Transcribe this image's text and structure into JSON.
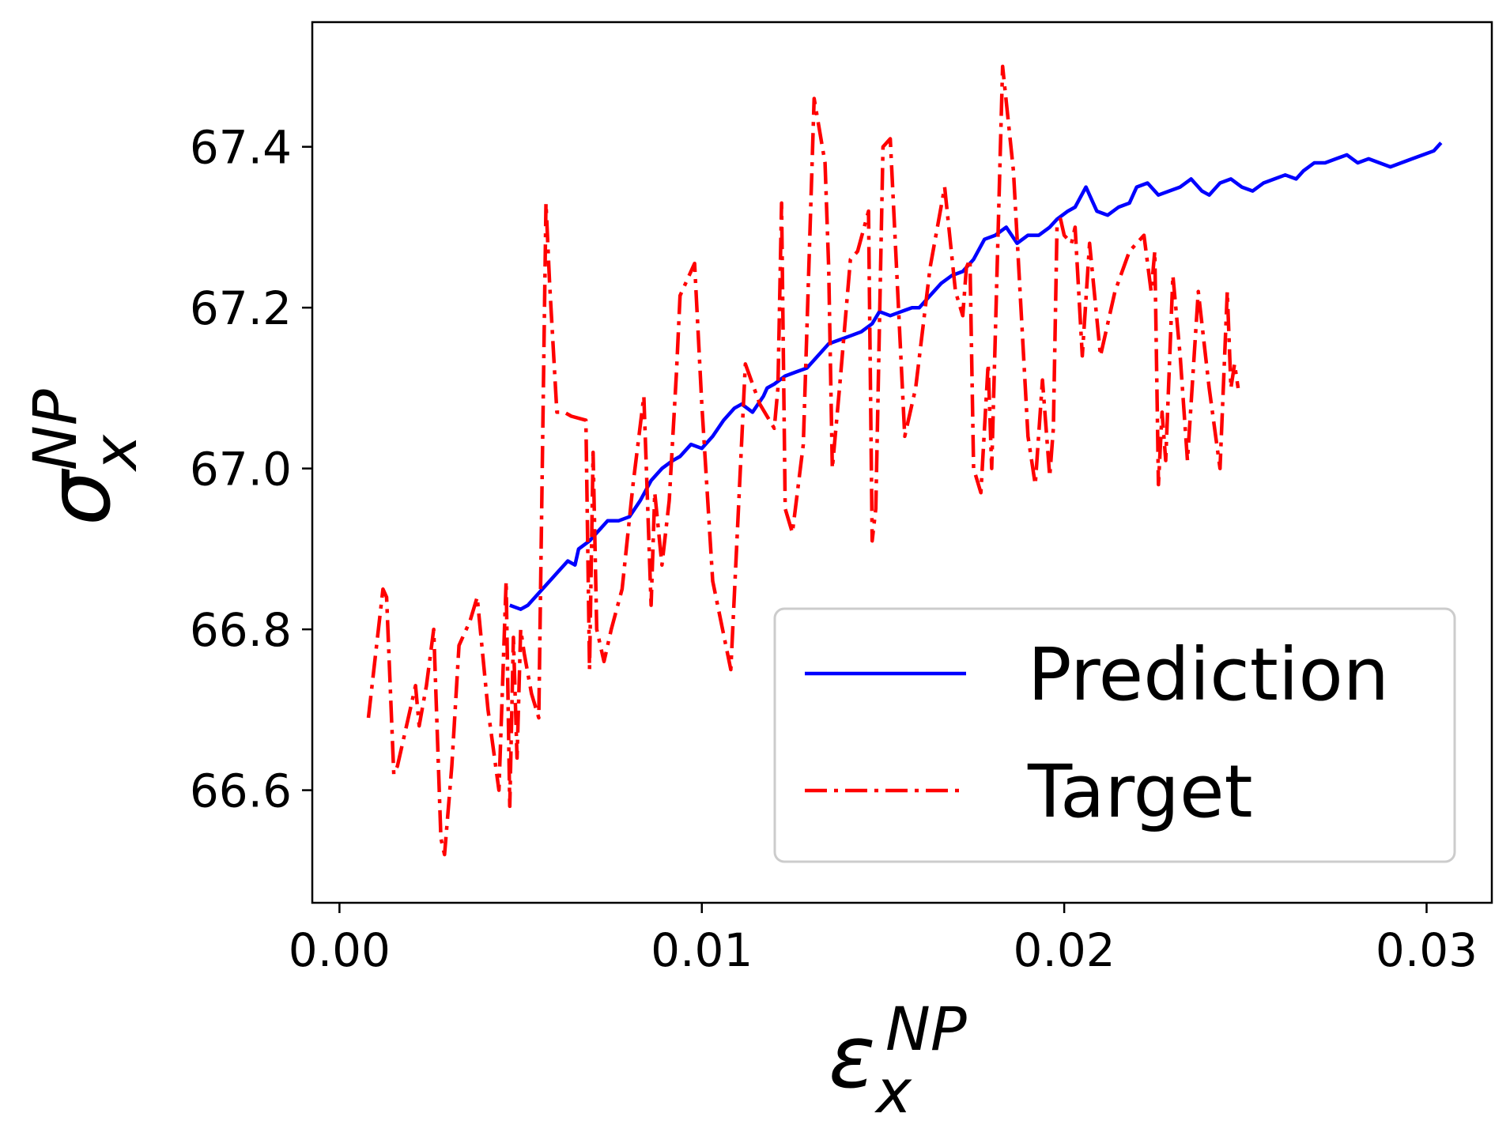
{
  "chart_data": {
    "type": "line",
    "title": "",
    "xlabel": {
      "main": "ε",
      "sub": "x",
      "sup": "NP"
    },
    "ylabel": {
      "main": "σ",
      "sub": "x",
      "sup": "NP"
    },
    "xlim": [
      -0.00075,
      0.0318
    ],
    "ylim": [
      66.46,
      67.555
    ],
    "xticks": [
      {
        "value": 0.0,
        "label": "0.00"
      },
      {
        "value": 0.01,
        "label": "0.01"
      },
      {
        "value": 0.02,
        "label": "0.02"
      },
      {
        "value": 0.03,
        "label": "0.03"
      }
    ],
    "yticks": [
      {
        "value": 66.6,
        "label": "66.6"
      },
      {
        "value": 66.8,
        "label": "66.8"
      },
      {
        "value": 67.0,
        "label": "67.0"
      },
      {
        "value": 67.2,
        "label": "67.2"
      },
      {
        "value": 67.4,
        "label": "67.4"
      }
    ],
    "grid": false,
    "legend": {
      "position": "lower-right"
    },
    "series": [
      {
        "name": "Prediction",
        "color": "#0000ff",
        "linestyle": "solid",
        "x": [
          0.0047,
          0.005,
          0.0052,
          0.0055,
          0.0058,
          0.006,
          0.0063,
          0.0065,
          0.0066,
          0.0069,
          0.0071,
          0.0074,
          0.0077,
          0.008,
          0.0083,
          0.0086,
          0.0089,
          0.0092,
          0.0094,
          0.0097,
          0.01,
          0.0103,
          0.0106,
          0.0109,
          0.0111,
          0.0114,
          0.0117,
          0.0118,
          0.012,
          0.0123,
          0.0126,
          0.0129,
          0.0132,
          0.0135,
          0.0138,
          0.0141,
          0.0144,
          0.0147,
          0.0149,
          0.0152,
          0.0155,
          0.0158,
          0.016,
          0.0163,
          0.0166,
          0.0169,
          0.0172,
          0.0175,
          0.0178,
          0.0181,
          0.0184,
          0.0187,
          0.019,
          0.0193,
          0.0196,
          0.0198,
          0.0201,
          0.0203,
          0.0206,
          0.0209,
          0.0212,
          0.0215,
          0.0218,
          0.022,
          0.0223,
          0.0226,
          0.0229,
          0.0232,
          0.0235,
          0.0238,
          0.024,
          0.0243,
          0.0246,
          0.0249,
          0.0252,
          0.0255,
          0.0258,
          0.0261,
          0.0264,
          0.0266,
          0.0269,
          0.0272,
          0.0275,
          0.0278,
          0.0281,
          0.0284,
          0.0287,
          0.029,
          0.0293,
          0.0296,
          0.0299,
          0.0302,
          0.0304
        ],
        "y": [
          66.83,
          66.825,
          66.83,
          66.845,
          66.86,
          66.87,
          66.885,
          66.88,
          66.9,
          66.91,
          66.92,
          66.935,
          66.935,
          66.94,
          66.96,
          66.985,
          67.0,
          67.01,
          67.015,
          67.03,
          67.025,
          67.04,
          67.06,
          67.075,
          67.08,
          67.07,
          67.09,
          67.1,
          67.105,
          67.115,
          67.12,
          67.125,
          67.14,
          67.155,
          67.16,
          67.165,
          67.17,
          67.18,
          67.195,
          67.19,
          67.195,
          67.2,
          67.2,
          67.215,
          67.23,
          67.24,
          67.245,
          67.26,
          67.285,
          67.29,
          67.3,
          67.28,
          67.29,
          67.29,
          67.3,
          67.31,
          67.32,
          67.325,
          67.35,
          67.32,
          67.315,
          67.325,
          67.33,
          67.35,
          67.355,
          67.34,
          67.345,
          67.35,
          67.36,
          67.345,
          67.34,
          67.355,
          67.36,
          67.35,
          67.345,
          67.355,
          67.36,
          67.365,
          67.36,
          67.37,
          67.38,
          67.38,
          67.385,
          67.39,
          67.38,
          67.385,
          67.38,
          67.375,
          67.38,
          67.385,
          67.39,
          67.395,
          67.405
        ]
      },
      {
        "name": "Target",
        "color": "#ff0000",
        "linestyle": "dashdot",
        "x": [
          0.0008,
          0.0012,
          0.0013,
          0.0015,
          0.0016,
          0.0019,
          0.0021,
          0.0022,
          0.0024,
          0.0026,
          0.0028,
          0.0029,
          0.0031,
          0.0033,
          0.0036,
          0.0038,
          0.0041,
          0.0044,
          0.0046,
          0.0047,
          0.0048,
          0.0049,
          0.005,
          0.0051,
          0.0053,
          0.0055,
          0.0057,
          0.0058,
          0.006,
          0.0062,
          0.0064,
          0.0068,
          0.0069,
          0.007,
          0.0071,
          0.0073,
          0.0075,
          0.0078,
          0.0081,
          0.0084,
          0.0086,
          0.0087,
          0.0089,
          0.0091,
          0.0093,
          0.0094,
          0.0096,
          0.0098,
          0.01,
          0.0103,
          0.0108,
          0.0112,
          0.0116,
          0.012,
          0.0121,
          0.0122,
          0.0123,
          0.0125,
          0.0128,
          0.0131,
          0.0134,
          0.0135,
          0.0136,
          0.0138,
          0.0141,
          0.0143,
          0.0146,
          0.0147,
          0.0148,
          0.015,
          0.0152,
          0.0156,
          0.0159,
          0.0163,
          0.0167,
          0.017,
          0.0172,
          0.0173,
          0.0174,
          0.0175,
          0.0177,
          0.0179,
          0.018,
          0.0183,
          0.0186,
          0.019,
          0.0192,
          0.0194,
          0.0196,
          0.0197,
          0.0198,
          0.0199,
          0.02,
          0.0202,
          0.0203,
          0.0205,
          0.0207,
          0.021,
          0.0214,
          0.0218,
          0.0222,
          0.0224,
          0.0225,
          0.0226,
          0.0227,
          0.0228,
          0.023,
          0.0232,
          0.0234,
          0.0237,
          0.024,
          0.0243,
          0.0245,
          0.0246,
          0.0247,
          0.0248
        ],
        "y": [
          66.69,
          66.85,
          66.84,
          66.62,
          66.63,
          66.69,
          66.73,
          66.68,
          66.73,
          66.8,
          66.54,
          66.52,
          66.63,
          66.78,
          66.81,
          66.84,
          66.7,
          66.6,
          66.86,
          66.58,
          66.79,
          66.64,
          66.8,
          66.77,
          66.72,
          66.69,
          67.33,
          67.23,
          67.07,
          67.07,
          67.065,
          67.06,
          66.75,
          67.02,
          66.8,
          66.76,
          66.8,
          66.85,
          66.98,
          67.09,
          66.83,
          66.97,
          66.88,
          66.96,
          67.12,
          67.215,
          67.235,
          67.255,
          67.08,
          66.86,
          66.75,
          67.13,
          67.08,
          67.05,
          67.1,
          67.33,
          66.95,
          66.92,
          67.03,
          67.46,
          67.38,
          67.25,
          67.0,
          67.1,
          67.26,
          67.27,
          67.32,
          66.91,
          66.95,
          67.4,
          67.41,
          67.04,
          67.1,
          67.25,
          67.35,
          67.22,
          67.19,
          67.25,
          67.26,
          67.0,
          66.97,
          67.13,
          67.0,
          67.5,
          67.37,
          67.04,
          66.98,
          67.11,
          66.99,
          67.05,
          67.3,
          67.31,
          67.29,
          67.28,
          67.3,
          67.14,
          67.28,
          67.14,
          67.22,
          67.27,
          67.29,
          67.22,
          67.27,
          66.98,
          67.07,
          67.01,
          67.24,
          67.14,
          67.01,
          67.22,
          67.1,
          67.0,
          67.22,
          67.1,
          67.13,
          67.1
        ]
      }
    ]
  }
}
